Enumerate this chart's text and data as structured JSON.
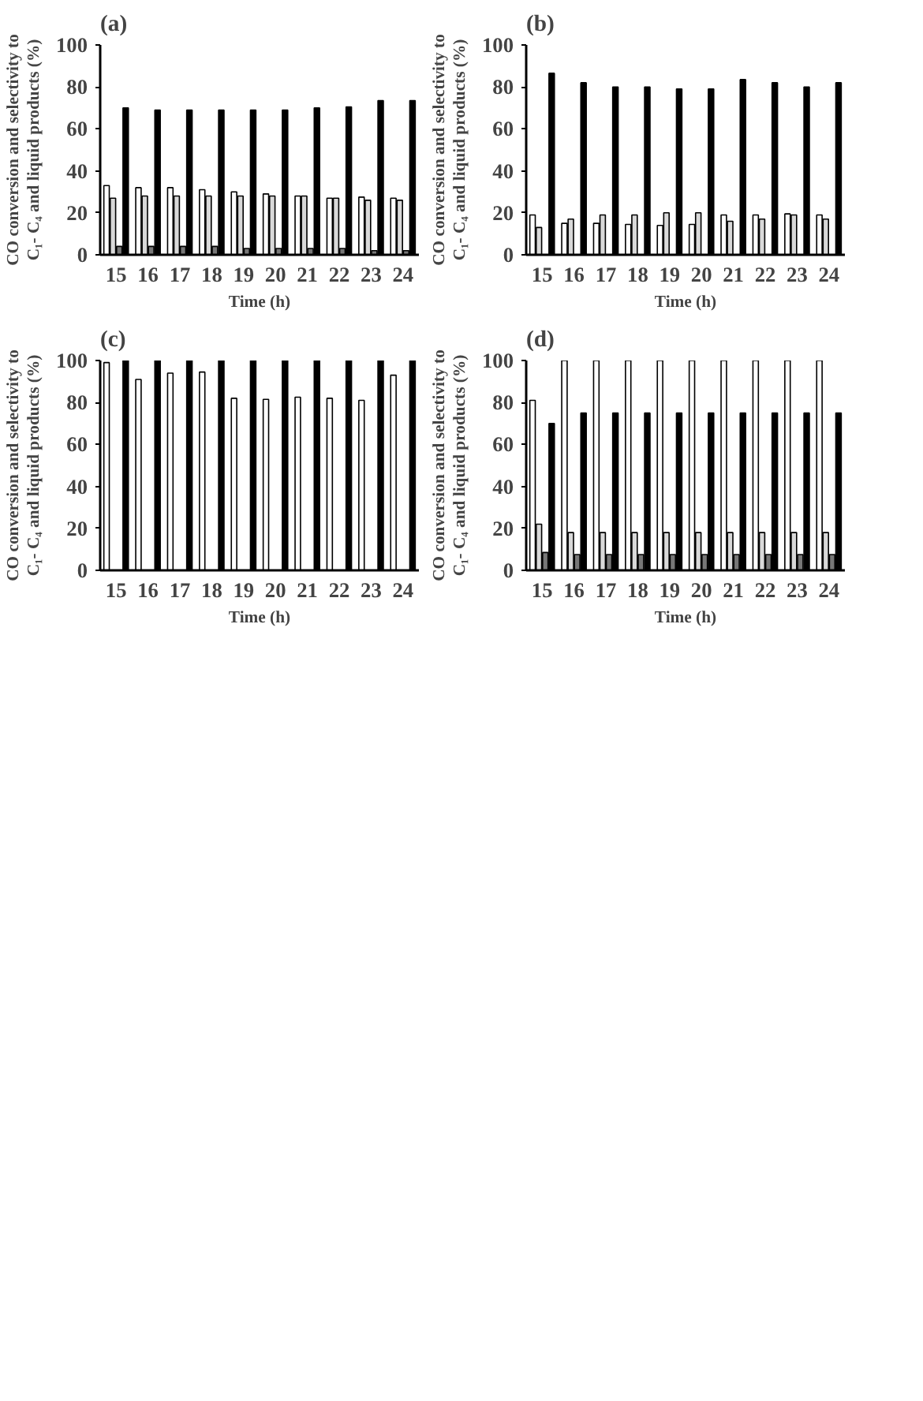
{
  "chart_data": [
    {
      "type": "bar",
      "title": "(a)",
      "xlabel": "Time (h)",
      "ylabel": "CO conversion and selectivity to\nC₁- C₄ and liquid products (%)",
      "categories": [
        "15",
        "16",
        "17",
        "18",
        "19",
        "20",
        "21",
        "22",
        "23",
        "24"
      ],
      "ylim": [
        0,
        100
      ],
      "yticks": [
        0,
        20,
        40,
        60,
        80,
        100
      ],
      "grid": false,
      "series": [
        {
          "color": "#ffffff",
          "values": [
            33,
            32,
            32,
            31,
            30,
            29,
            28,
            27,
            27.5,
            27
          ]
        },
        {
          "color": "#d9d9d9",
          "values": [
            27,
            28,
            28,
            28,
            28,
            28,
            28,
            27,
            26,
            26
          ]
        },
        {
          "color": "#777777",
          "values": [
            4,
            4,
            4,
            4,
            3,
            3,
            3,
            3,
            2,
            2
          ]
        },
        {
          "color": "#000000",
          "values": [
            70,
            69,
            69,
            69,
            69,
            69,
            70,
            70.5,
            73.5,
            73.5
          ]
        }
      ]
    },
    {
      "type": "bar",
      "title": "(b)",
      "xlabel": "Time (h)",
      "ylabel": "CO conversion and selectivity to\nC₁- C₄ and liquid products (%)",
      "categories": [
        "15",
        "16",
        "17",
        "18",
        "19",
        "20",
        "21",
        "22",
        "23",
        "24"
      ],
      "ylim": [
        0,
        100
      ],
      "yticks": [
        0,
        20,
        40,
        60,
        80,
        100
      ],
      "grid": false,
      "series": [
        {
          "color": "#ffffff",
          "values": [
            19,
            15,
            15,
            14.5,
            14,
            14.5,
            19,
            19,
            19.5,
            19
          ]
        },
        {
          "color": "#d9d9d9",
          "values": [
            13,
            17,
            19,
            19,
            20,
            20,
            16,
            17,
            19,
            17
          ]
        },
        {
          "values": [
            null,
            null,
            null,
            null,
            null,
            null,
            null,
            null,
            null,
            null
          ]
        },
        {
          "color": "#000000",
          "values": [
            86.5,
            82,
            80,
            80,
            79,
            79,
            83.5,
            82,
            80,
            82
          ]
        }
      ]
    },
    {
      "type": "bar",
      "title": "(c)",
      "xlabel": "Time (h)",
      "ylabel": "CO conversion and selectivity to\nC₁- C₄ and liquid products (%)",
      "categories": [
        "15",
        "16",
        "17",
        "18",
        "19",
        "20",
        "21",
        "22",
        "23",
        "24"
      ],
      "ylim": [
        0,
        100
      ],
      "yticks": [
        0,
        20,
        40,
        60,
        80,
        100
      ],
      "grid": false,
      "series": [
        {
          "color": "#ffffff",
          "values": [
            99,
            91,
            94,
            94.5,
            82,
            81.5,
            82.5,
            82,
            81,
            93
          ]
        },
        {
          "values": [
            null,
            null,
            null,
            null,
            null,
            null,
            null,
            null,
            null,
            null
          ]
        },
        {
          "values": [
            null,
            null,
            null,
            null,
            null,
            null,
            null,
            null,
            null,
            null
          ]
        },
        {
          "color": "#000000",
          "values": [
            100,
            100,
            100,
            100,
            100,
            100,
            100,
            100,
            100,
            100
          ]
        }
      ]
    },
    {
      "type": "bar",
      "title": "(d)",
      "xlabel": "Time (h)",
      "ylabel": "CO conversion and selectivity to\nC₁- C₄ and liquid products (%)",
      "categories": [
        "15",
        "16",
        "17",
        "18",
        "19",
        "20",
        "21",
        "22",
        "23",
        "24"
      ],
      "ylim": [
        0,
        100
      ],
      "yticks": [
        0,
        20,
        40,
        60,
        80,
        100
      ],
      "grid": false,
      "series": [
        {
          "color": "#ffffff",
          "values": [
            81,
            100,
            100,
            100,
            100,
            100,
            100,
            100,
            100,
            100
          ]
        },
        {
          "color": "#d9d9d9",
          "values": [
            22,
            18,
            18,
            18,
            18,
            18,
            18,
            18,
            18,
            18
          ]
        },
        {
          "color": "#777777",
          "values": [
            8.5,
            7.5,
            7.5,
            7.5,
            7.5,
            7.5,
            7.5,
            7.5,
            7.5,
            7.5
          ]
        },
        {
          "color": "#000000",
          "values": [
            70,
            75,
            75,
            75,
            75,
            75,
            75,
            75,
            75,
            75
          ]
        }
      ]
    }
  ]
}
